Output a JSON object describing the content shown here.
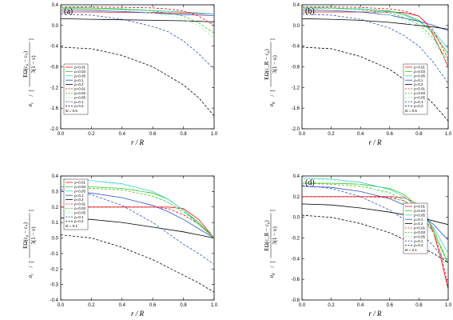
{
  "chart_data": [
    {
      "panel": "(a)",
      "type": "line",
      "xlabel": "r / R",
      "ylabel_prefix": "σ",
      "ylabel_sub": "r",
      "ylabel_frac_top": "EΩ(c₀ − cₛ)",
      "ylabel_frac_bottom": "3(1 − ν)",
      "xlim": [
        0.0,
        1.0
      ],
      "ylim": [
        -2.0,
        0.4
      ],
      "xticks": [
        "0.0",
        "0.2",
        "0.4",
        "0.6",
        "0.8",
        "1.0"
      ],
      "yticks": [
        "0.4",
        "0.0",
        "-0.4",
        "-0.8",
        "-1.2",
        "-1.6",
        "-2.0"
      ],
      "legend": [
        "ρ=0.01",
        "ρ=0.03",
        "ρ=0.05",
        "ρ=0.1",
        "ρ=0.2",
        "ρ=0.01",
        "ρ=0.03",
        "ρ=0.05",
        "ρ=0.1",
        "ρ=0.2"
      ],
      "legend_note": "ϖ = 0.5",
      "series": [
        {
          "color": "#e8141b",
          "dash": false,
          "x": [
            0,
            0.2,
            0.4,
            0.6,
            0.7,
            0.8,
            0.9,
            0.95,
            1.0
          ],
          "y": [
            0.26,
            0.26,
            0.255,
            0.25,
            0.245,
            0.24,
            0.23,
            0.225,
            0.22
          ]
        },
        {
          "color": "#40c020",
          "dash": false,
          "x": [
            0,
            0.2,
            0.4,
            0.6,
            0.8,
            0.9,
            1.0
          ],
          "y": [
            0.33,
            0.32,
            0.31,
            0.29,
            0.26,
            0.24,
            0.22
          ]
        },
        {
          "color": "#40d0d0",
          "dash": false,
          "x": [
            0,
            0.2,
            0.4,
            0.6,
            0.8,
            0.9,
            1.0
          ],
          "y": [
            0.35,
            0.34,
            0.32,
            0.29,
            0.26,
            0.24,
            0.22
          ]
        },
        {
          "color": "#3050c8",
          "dash": false,
          "x": [
            0,
            0.2,
            0.4,
            0.6,
            0.8,
            0.9,
            1.0
          ],
          "y": [
            0.3,
            0.29,
            0.27,
            0.24,
            0.21,
            0.2,
            0.19
          ]
        },
        {
          "color": "#000000",
          "dash": false,
          "x": [
            0,
            0.2,
            0.4,
            0.6,
            0.8,
            0.9,
            1.0
          ],
          "y": [
            0.13,
            0.12,
            0.11,
            0.1,
            0.09,
            0.08,
            0.07
          ]
        },
        {
          "color": "#e8141b",
          "dash": true,
          "x": [
            0,
            0.2,
            0.4,
            0.6,
            0.7,
            0.8,
            0.9,
            1.0
          ],
          "y": [
            0.36,
            0.36,
            0.35,
            0.34,
            0.32,
            0.28,
            0.18,
            0.0
          ]
        },
        {
          "color": "#40c020",
          "dash": true,
          "x": [
            0,
            0.2,
            0.4,
            0.6,
            0.7,
            0.8,
            0.9,
            1.0
          ],
          "y": [
            0.35,
            0.34,
            0.32,
            0.28,
            0.24,
            0.18,
            0.05,
            -0.15
          ]
        },
        {
          "color": "#a0f0c0",
          "dash": true,
          "x": [
            0,
            0.2,
            0.4,
            0.6,
            0.7,
            0.8,
            0.9,
            1.0
          ],
          "y": [
            0.34,
            0.33,
            0.3,
            0.24,
            0.19,
            0.12,
            0.0,
            -0.25
          ]
        },
        {
          "color": "#3050c8",
          "dash": true,
          "x": [
            0,
            0.2,
            0.4,
            0.6,
            0.7,
            0.8,
            0.9,
            1.0
          ],
          "y": [
            0.22,
            0.2,
            0.12,
            -0.02,
            -0.12,
            -0.3,
            -0.55,
            -0.85
          ]
        },
        {
          "color": "#000000",
          "dash": true,
          "x": [
            0,
            0.2,
            0.4,
            0.6,
            0.8,
            0.9,
            1.0
          ],
          "y": [
            -0.42,
            -0.45,
            -0.58,
            -0.8,
            -1.15,
            -1.4,
            -1.75
          ]
        }
      ]
    },
    {
      "panel": "(b)",
      "type": "line",
      "xlabel": "r / R",
      "ylabel_prefix": "σ",
      "ylabel_sub": "θ",
      "ylabel_frac_top": "EΩ(c_R − c₀)",
      "ylabel_frac_bottom": "3(1 − υ)",
      "xlim": [
        0.0,
        1.0
      ],
      "ylim": [
        -2.0,
        0.4
      ],
      "xticks": [
        "0.0",
        "0.2",
        "0.4",
        "0.6",
        "0.8",
        "1.0"
      ],
      "yticks": [
        "0.4",
        "0.0",
        "-0.4",
        "-0.8",
        "-1.2",
        "-1.6",
        "-2.0"
      ],
      "legend": [
        "ρ=0.01",
        "ρ=0.03",
        "ρ=0.05",
        "ρ=0.1",
        "ρ=0.2",
        "ρ=0.01",
        "ρ=0.03",
        "ρ=0.05",
        "ρ=0.1",
        "ρ=0.2"
      ],
      "legend_note": "ϖ = 0.5",
      "series": [
        {
          "color": "#e8141b",
          "dash": false,
          "x": [
            0,
            0.2,
            0.4,
            0.6,
            0.7,
            0.8,
            0.85,
            0.9,
            0.95,
            1.0
          ],
          "y": [
            0.26,
            0.26,
            0.26,
            0.26,
            0.25,
            0.18,
            0.05,
            -0.2,
            -0.5,
            -0.8
          ]
        },
        {
          "color": "#40c020",
          "dash": false,
          "x": [
            0,
            0.2,
            0.4,
            0.6,
            0.7,
            0.8,
            0.9,
            1.0
          ],
          "y": [
            0.33,
            0.33,
            0.32,
            0.28,
            0.22,
            0.1,
            -0.15,
            -0.55
          ]
        },
        {
          "color": "#40d0d0",
          "dash": false,
          "x": [
            0,
            0.2,
            0.4,
            0.6,
            0.7,
            0.8,
            0.9,
            1.0
          ],
          "y": [
            0.35,
            0.34,
            0.32,
            0.27,
            0.2,
            0.08,
            -0.12,
            -0.45
          ]
        },
        {
          "color": "#3050c8",
          "dash": false,
          "x": [
            0,
            0.2,
            0.4,
            0.6,
            0.8,
            0.9,
            1.0
          ],
          "y": [
            0.3,
            0.29,
            0.26,
            0.2,
            0.08,
            0.0,
            -0.1
          ]
        },
        {
          "color": "#000000",
          "dash": false,
          "x": [
            0,
            0.2,
            0.4,
            0.6,
            0.8,
            0.9,
            1.0
          ],
          "y": [
            0.13,
            0.12,
            0.1,
            0.06,
            0.0,
            -0.03,
            -0.07
          ]
        },
        {
          "color": "#e8141b",
          "dash": true,
          "x": [
            0,
            0.2,
            0.4,
            0.6,
            0.7,
            0.8,
            0.9,
            1.0
          ],
          "y": [
            0.36,
            0.36,
            0.35,
            0.32,
            0.28,
            0.18,
            -0.1,
            -0.65
          ]
        },
        {
          "color": "#40c020",
          "dash": true,
          "x": [
            0,
            0.2,
            0.4,
            0.6,
            0.7,
            0.8,
            0.9,
            1.0
          ],
          "y": [
            0.35,
            0.34,
            0.31,
            0.24,
            0.15,
            0.02,
            -0.25,
            -0.7
          ]
        },
        {
          "color": "#a0f0c0",
          "dash": true,
          "x": [
            0,
            0.2,
            0.4,
            0.6,
            0.7,
            0.8,
            0.9,
            1.0
          ],
          "y": [
            0.34,
            0.33,
            0.29,
            0.2,
            0.1,
            -0.05,
            -0.3,
            -0.75
          ]
        },
        {
          "color": "#3050c8",
          "dash": true,
          "x": [
            0,
            0.2,
            0.4,
            0.6,
            0.7,
            0.8,
            0.9,
            1.0
          ],
          "y": [
            0.22,
            0.2,
            0.12,
            -0.05,
            -0.2,
            -0.4,
            -0.72,
            -1.12
          ]
        },
        {
          "color": "#000000",
          "dash": true,
          "x": [
            0,
            0.2,
            0.4,
            0.6,
            0.8,
            0.9,
            1.0
          ],
          "y": [
            -0.42,
            -0.45,
            -0.6,
            -0.85,
            -1.25,
            -1.52,
            -1.85
          ]
        }
      ]
    },
    {
      "panel": "(c)",
      "type": "line",
      "xlabel": "r / R",
      "ylabel_prefix": "σ",
      "ylabel_sub": "r",
      "ylabel_frac_top": "EΩ(c₀ − cₛ)",
      "ylabel_frac_bottom": "3(1 − ν)",
      "xlim": [
        0.0,
        1.0
      ],
      "ylim": [
        -0.4,
        0.4
      ],
      "xticks": [
        "0.0",
        "0.2",
        "0.4",
        "0.6",
        "0.8",
        "1.0"
      ],
      "yticks": [
        "0.4",
        "0.3",
        "0.2",
        "0.1",
        "0.0",
        "-0.1",
        "-0.2",
        "-0.3",
        "-0.4"
      ],
      "legend": [
        "ρ=0.01",
        "ρ=0.03",
        "ρ=0.05",
        "ρ=0.1",
        "ρ=0.2",
        "ρ=0.01",
        "ρ=0.03",
        "ρ=0.05",
        "ρ=0.1",
        "ρ=0.2"
      ],
      "legend_note": "ϖ = 0.1",
      "series": [
        {
          "color": "#e8141b",
          "dash": false,
          "x": [
            0,
            0.2,
            0.4,
            0.6,
            0.7,
            0.8,
            0.9,
            1.0
          ],
          "y": [
            0.2,
            0.2,
            0.2,
            0.2,
            0.2,
            0.19,
            0.12,
            0.0
          ]
        },
        {
          "color": "#40c020",
          "dash": false,
          "x": [
            0,
            0.2,
            0.4,
            0.6,
            0.7,
            0.8,
            0.9,
            1.0
          ],
          "y": [
            0.33,
            0.33,
            0.32,
            0.29,
            0.25,
            0.18,
            0.1,
            0.0
          ]
        },
        {
          "color": "#40d0d0",
          "dash": false,
          "x": [
            0,
            0.2,
            0.4,
            0.6,
            0.7,
            0.8,
            0.9,
            1.0
          ],
          "y": [
            0.38,
            0.37,
            0.35,
            0.3,
            0.25,
            0.18,
            0.09,
            0.0
          ]
        },
        {
          "color": "#3050c8",
          "dash": false,
          "x": [
            0,
            0.2,
            0.4,
            0.6,
            0.7,
            0.8,
            0.9,
            1.0
          ],
          "y": [
            0.3,
            0.29,
            0.26,
            0.21,
            0.17,
            0.12,
            0.06,
            0.0
          ]
        },
        {
          "color": "#000000",
          "dash": false,
          "x": [
            0,
            0.2,
            0.4,
            0.6,
            0.8,
            1.0
          ],
          "y": [
            0.13,
            0.12,
            0.1,
            0.07,
            0.04,
            0.0
          ]
        },
        {
          "color": "#e8141b",
          "dash": true,
          "x": [
            0,
            0.2,
            0.4,
            0.6,
            0.7,
            0.8,
            0.9,
            1.0
          ],
          "y": [
            0.2,
            0.2,
            0.2,
            0.2,
            0.19,
            0.15,
            0.09,
            0.0
          ]
        },
        {
          "color": "#40c020",
          "dash": true,
          "x": [
            0,
            0.2,
            0.4,
            0.6,
            0.7,
            0.8,
            0.9,
            1.0
          ],
          "y": [
            0.33,
            0.32,
            0.31,
            0.27,
            0.23,
            0.17,
            0.09,
            0.0
          ]
        },
        {
          "color": "#a0f0c0",
          "dash": true,
          "x": [
            0,
            0.2,
            0.4,
            0.6,
            0.7,
            0.8,
            0.9,
            1.0
          ],
          "y": [
            0.38,
            0.37,
            0.34,
            0.28,
            0.23,
            0.16,
            0.08,
            0.0
          ]
        },
        {
          "color": "#3050c8",
          "dash": true,
          "x": [
            0,
            0.2,
            0.4,
            0.6,
            0.7,
            0.8,
            0.9,
            1.0
          ],
          "y": [
            0.31,
            0.28,
            0.21,
            0.1,
            0.03,
            -0.04,
            -0.1,
            -0.17
          ]
        },
        {
          "color": "#000000",
          "dash": true,
          "x": [
            0,
            0.2,
            0.4,
            0.6,
            0.7,
            0.8,
            0.9,
            1.0
          ],
          "y": [
            0.02,
            0.0,
            -0.06,
            -0.14,
            -0.19,
            -0.24,
            -0.29,
            -0.35
          ]
        }
      ]
    },
    {
      "panel": "(d)",
      "type": "line",
      "xlabel": "r / R",
      "ylabel_prefix": "σ",
      "ylabel_sub": "θ",
      "ylabel_frac_top": "EΩ(c_R − c₀)",
      "ylabel_frac_bottom": "3(1 − υ)",
      "xlim": [
        0.0,
        1.0
      ],
      "ylim": [
        -0.8,
        0.4
      ],
      "xticks": [
        "0.0",
        "0.2",
        "0.4",
        "0.6",
        "0.8",
        "1.0"
      ],
      "yticks": [
        "0.4",
        "0.2",
        "0.0",
        "-0.2",
        "-0.4",
        "-0.6",
        "-0.8"
      ],
      "legend": [
        "ρ=0.01",
        "ρ=0.03",
        "ρ=0.05",
        "ρ=0.1",
        "ρ=0.2",
        "ρ=0.01",
        "ρ=0.03",
        "ρ=0.05",
        "ρ=0.1",
        "ρ=0.2"
      ],
      "legend_note": "ϖ = 0.1",
      "series": [
        {
          "color": "#e8141b",
          "dash": false,
          "x": [
            0,
            0.2,
            0.4,
            0.6,
            0.7,
            0.8,
            0.85,
            0.9,
            0.95,
            1.0
          ],
          "y": [
            0.2,
            0.2,
            0.2,
            0.2,
            0.19,
            0.12,
            0.02,
            -0.15,
            -0.4,
            -0.7
          ]
        },
        {
          "color": "#40c020",
          "dash": false,
          "x": [
            0,
            0.2,
            0.4,
            0.6,
            0.7,
            0.8,
            0.9,
            1.0
          ],
          "y": [
            0.33,
            0.33,
            0.32,
            0.28,
            0.22,
            0.1,
            -0.12,
            -0.45
          ]
        },
        {
          "color": "#40d0d0",
          "dash": false,
          "x": [
            0,
            0.2,
            0.4,
            0.6,
            0.7,
            0.8,
            0.9,
            1.0
          ],
          "y": [
            0.38,
            0.37,
            0.34,
            0.27,
            0.2,
            0.08,
            -0.1,
            -0.35
          ]
        },
        {
          "color": "#3050c8",
          "dash": false,
          "x": [
            0,
            0.2,
            0.4,
            0.6,
            0.7,
            0.8,
            0.9,
            1.0
          ],
          "y": [
            0.3,
            0.29,
            0.25,
            0.18,
            0.12,
            0.04,
            -0.07,
            -0.22
          ]
        },
        {
          "color": "#000000",
          "dash": false,
          "x": [
            0,
            0.2,
            0.4,
            0.6,
            0.8,
            1.0
          ],
          "y": [
            0.13,
            0.12,
            0.09,
            0.05,
            0.0,
            -0.07
          ]
        },
        {
          "color": "#e8141b",
          "dash": true,
          "x": [
            0,
            0.2,
            0.4,
            0.6,
            0.7,
            0.8,
            0.9,
            0.95,
            1.0
          ],
          "y": [
            0.2,
            0.2,
            0.2,
            0.19,
            0.16,
            0.07,
            -0.15,
            -0.35,
            -0.68
          ]
        },
        {
          "color": "#40c020",
          "dash": true,
          "x": [
            0,
            0.2,
            0.4,
            0.6,
            0.7,
            0.8,
            0.9,
            1.0
          ],
          "y": [
            0.33,
            0.32,
            0.3,
            0.24,
            0.16,
            0.04,
            -0.15,
            -0.45
          ]
        },
        {
          "color": "#a0f0c0",
          "dash": true,
          "x": [
            0,
            0.2,
            0.4,
            0.6,
            0.7,
            0.8,
            0.9,
            1.0
          ],
          "y": [
            0.38,
            0.36,
            0.32,
            0.22,
            0.14,
            0.02,
            -0.15,
            -0.4
          ]
        },
        {
          "color": "#3050c8",
          "dash": true,
          "x": [
            0,
            0.2,
            0.4,
            0.6,
            0.7,
            0.8,
            0.9,
            1.0
          ],
          "y": [
            0.31,
            0.28,
            0.2,
            0.07,
            -0.02,
            -0.13,
            -0.28,
            -0.45
          ]
        },
        {
          "color": "#000000",
          "dash": true,
          "x": [
            0,
            0.2,
            0.4,
            0.6,
            0.8,
            0.9,
            1.0
          ],
          "y": [
            0.02,
            0.0,
            -0.06,
            -0.15,
            -0.28,
            -0.35,
            -0.44
          ]
        }
      ]
    }
  ]
}
